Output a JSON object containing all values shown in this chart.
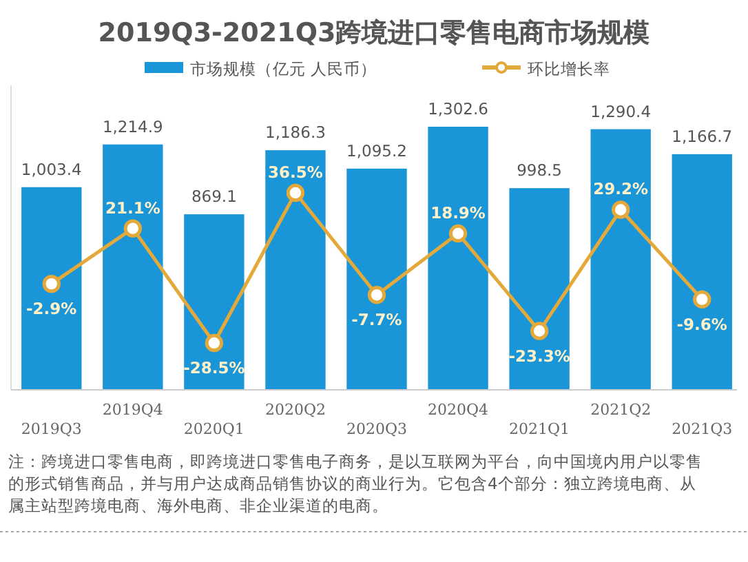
{
  "chart_data": {
    "type": "bar",
    "title": "2019Q3-2021Q3跨境进口零售电商市场规模",
    "categories": [
      "2019Q3",
      "2019Q4",
      "2020Q1",
      "2020Q2",
      "2020Q3",
      "2020Q4",
      "2021Q1",
      "2021Q2",
      "2021Q3"
    ],
    "series": [
      {
        "name": "市场规模（亿元 人民币）",
        "color": "#1a96d8",
        "values": [
          1003.4,
          1214.9,
          869.1,
          1186.3,
          1095.2,
          1302.6,
          998.5,
          1290.4,
          1166.7
        ],
        "value_labels": [
          "1,003.4",
          "1,214.9",
          "869.1",
          "1,186.3",
          "1,095.2",
          "1,302.6",
          "998.5",
          "1,290.4",
          "1,166.7"
        ]
      },
      {
        "name": "环比增长率",
        "type": "line",
        "axis": "y2",
        "color": "#e3a93b",
        "values": [
          -2.9,
          21.1,
          -28.5,
          36.5,
          -7.7,
          18.9,
          -23.3,
          29.2,
          -9.6
        ],
        "value_labels": [
          "-2.9%",
          "21.1%",
          "-28.5%",
          "36.5%",
          "-7.7%",
          "18.9%",
          "-23.3%",
          "29.2%",
          "-9.6%"
        ]
      }
    ],
    "marker": "circle",
    "legend": "top",
    "annotations": [
      "注：跨境进口零售电商，即跨境进口零售电子商务，是以互联网为平台，向中国境内用户以零售的形式销售商品，并与用户达成商品销售协议的商业行为。它包含4个部分：独立跨境电商、从属主站型跨境电商、海外电商、非企业渠道的电商。"
    ]
  }
}
